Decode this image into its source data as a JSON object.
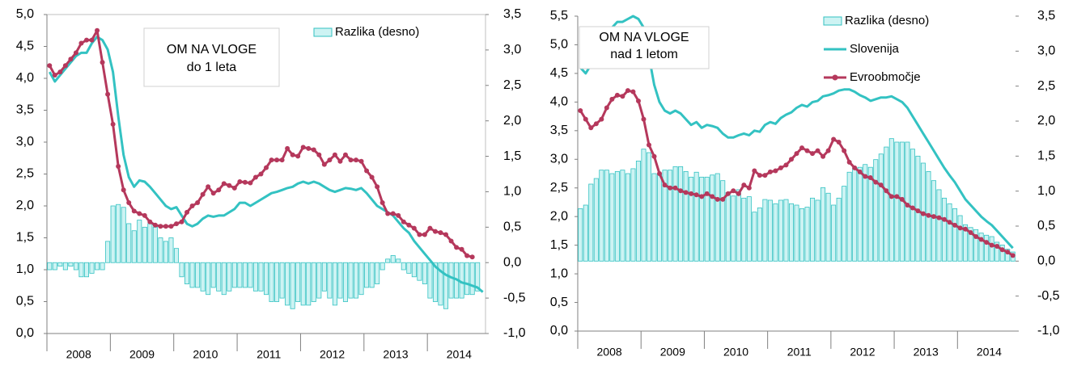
{
  "chart_data": [
    {
      "type": "combo",
      "annotation": [
        "OM NA VLOGE",
        "do 1 leta"
      ],
      "legend": "top-right",
      "frame": true,
      "categories": [
        null,
        null,
        null,
        null,
        null,
        null,
        "2008",
        null,
        null,
        null,
        null,
        null,
        null,
        null,
        null,
        null,
        null,
        null,
        "2009",
        null,
        null,
        null,
        null,
        null,
        null,
        null,
        null,
        null,
        null,
        null,
        "2010",
        null,
        null,
        null,
        null,
        null,
        null,
        null,
        null,
        null,
        null,
        null,
        "2011",
        null,
        null,
        null,
        null,
        null,
        null,
        null,
        null,
        null,
        null,
        null,
        "2012",
        null,
        null,
        null,
        null,
        null,
        null,
        null,
        null,
        null,
        null,
        null,
        "2013",
        null,
        null,
        null,
        null,
        null,
        null,
        null,
        null,
        null,
        null,
        null,
        "2014",
        null,
        null,
        null,
        null
      ],
      "ylim": [
        0,
        5
      ],
      "yticks": [
        {
          "value": 0,
          "label": "0,0"
        },
        {
          "value": 0.5,
          "label": "0,5"
        },
        {
          "value": 1,
          "label": "1,0"
        },
        {
          "value": 1.5,
          "label": "1,5"
        },
        {
          "value": 2,
          "label": "2,0"
        },
        {
          "value": 2.5,
          "label": "2,5"
        },
        {
          "value": 3,
          "label": "3,0"
        },
        {
          "value": 3.5,
          "label": "3,5"
        },
        {
          "value": 4,
          "label": "4,0"
        },
        {
          "value": 4.5,
          "label": "4,5"
        },
        {
          "value": 5,
          "label": "5,0"
        }
      ],
      "y2lim": [
        -1,
        3.5
      ],
      "y2ticks": [
        {
          "value": -1,
          "label": "-1,0"
        },
        {
          "value": -0.5,
          "label": "-0,5"
        },
        {
          "value": 0,
          "label": "0,0"
        },
        {
          "value": 0.5,
          "label": "0,5"
        },
        {
          "value": 1,
          "label": "1,0"
        },
        {
          "value": 1.5,
          "label": "1,5"
        },
        {
          "value": 2,
          "label": "2,0"
        },
        {
          "value": 2.5,
          "label": "2,5"
        },
        {
          "value": 3,
          "label": "3,0"
        },
        {
          "value": 3.5,
          "label": "3,5"
        }
      ],
      "series": [
        {
          "name": "Razlika (desno)",
          "kind": "bar",
          "axis": "y2",
          "color": "#33c2c2",
          "fill": "#cdf3f3",
          "values": [
            -0.1,
            -0.1,
            -0.05,
            -0.1,
            -0.05,
            -0.1,
            -0.2,
            -0.2,
            -0.15,
            -0.1,
            -0.1,
            0.3,
            0.8,
            0.82,
            0.78,
            0.55,
            0.45,
            0.6,
            0.5,
            0.55,
            0.5,
            0.35,
            0.3,
            0.35,
            0.2,
            -0.2,
            -0.3,
            -0.35,
            -0.35,
            -0.4,
            -0.45,
            -0.35,
            -0.4,
            -0.45,
            -0.4,
            -0.35,
            -0.35,
            -0.35,
            -0.35,
            -0.4,
            -0.4,
            -0.45,
            -0.55,
            -0.55,
            -0.5,
            -0.6,
            -0.65,
            -0.55,
            -0.6,
            -0.6,
            -0.55,
            -0.5,
            -0.4,
            -0.5,
            -0.6,
            -0.5,
            -0.55,
            -0.5,
            -0.5,
            -0.45,
            -0.35,
            -0.35,
            -0.3,
            -0.1,
            0.05,
            0.1,
            0.05,
            -0.1,
            -0.15,
            -0.2,
            -0.25,
            -0.3,
            -0.5,
            -0.55,
            -0.6,
            -0.65,
            -0.5,
            -0.5,
            -0.5,
            -0.45,
            -0.45,
            -0.4,
            null
          ]
        },
        {
          "kind": "line",
          "color": "#33c2c2",
          "values": [
            4.1,
            3.95,
            4.05,
            4.15,
            4.25,
            4.35,
            4.4,
            4.4,
            4.55,
            4.65,
            4.6,
            4.45,
            4.1,
            3.4,
            2.8,
            2.45,
            2.3,
            2.4,
            2.38,
            2.3,
            2.2,
            2.1,
            2.0,
            1.95,
            1.98,
            1.85,
            1.72,
            1.68,
            1.72,
            1.8,
            1.85,
            1.83,
            1.85,
            1.85,
            1.9,
            1.95,
            2.05,
            2.05,
            2.0,
            2.05,
            2.1,
            2.15,
            2.2,
            2.22,
            2.25,
            2.28,
            2.3,
            2.35,
            2.38,
            2.35,
            2.38,
            2.35,
            2.3,
            2.25,
            2.22,
            2.25,
            2.28,
            2.27,
            2.25,
            2.28,
            2.2,
            2.1,
            2.0,
            1.95,
            1.9,
            1.85,
            1.75,
            1.65,
            1.58,
            1.45,
            1.35,
            1.25,
            1.15,
            1.05,
            0.98,
            0.92,
            0.88,
            0.85,
            0.8,
            0.78,
            0.75,
            0.72,
            0.65
          ]
        },
        {
          "kind": "line",
          "markers": true,
          "color": "#b5385c",
          "values": [
            4.2,
            4.05,
            4.1,
            4.2,
            4.3,
            4.4,
            4.55,
            4.6,
            4.6,
            4.75,
            4.25,
            3.75,
            3.28,
            2.62,
            2.25,
            2.05,
            1.92,
            1.88,
            1.85,
            1.75,
            1.7,
            1.68,
            1.68,
            1.68,
            1.72,
            1.75,
            1.9,
            2.0,
            2.05,
            2.18,
            2.3,
            2.2,
            2.25,
            2.35,
            2.32,
            2.28,
            2.38,
            2.37,
            2.36,
            2.45,
            2.5,
            2.6,
            2.72,
            2.72,
            2.72,
            2.9,
            2.8,
            2.78,
            2.92,
            2.9,
            2.88,
            2.8,
            2.65,
            2.72,
            2.8,
            2.7,
            2.8,
            2.72,
            2.72,
            2.7,
            2.55,
            2.45,
            2.3,
            2.05,
            1.88,
            1.88,
            1.85,
            1.75,
            1.7,
            1.65,
            1.55,
            1.55,
            1.65,
            1.6,
            1.58,
            1.55,
            1.45,
            1.35,
            1.32,
            1.22,
            1.2,
            null,
            null
          ]
        }
      ]
    },
    {
      "type": "combo",
      "annotation": [
        "OM NA VLOGE",
        "nad 1 letom"
      ],
      "legend": "top-right",
      "frame": false,
      "categories": [
        null,
        null,
        null,
        null,
        null,
        null,
        "2008",
        null,
        null,
        null,
        null,
        null,
        null,
        null,
        null,
        null,
        null,
        null,
        "2009",
        null,
        null,
        null,
        null,
        null,
        null,
        null,
        null,
        null,
        null,
        null,
        "2010",
        null,
        null,
        null,
        null,
        null,
        null,
        null,
        null,
        null,
        null,
        null,
        "2011",
        null,
        null,
        null,
        null,
        null,
        null,
        null,
        null,
        null,
        null,
        null,
        "2012",
        null,
        null,
        null,
        null,
        null,
        null,
        null,
        null,
        null,
        null,
        null,
        "2013",
        null,
        null,
        null,
        null,
        null,
        null,
        null,
        null,
        null,
        null,
        null,
        "2014",
        null,
        null,
        null,
        null
      ],
      "ylim": [
        0,
        5.5
      ],
      "yticks": [
        {
          "value": 0,
          "label": "0,0"
        },
        {
          "value": 0.5,
          "label": "0,5"
        },
        {
          "value": 1,
          "label": "1,0"
        },
        {
          "value": 1.5,
          "label": "1,5"
        },
        {
          "value": 2,
          "label": "2,0"
        },
        {
          "value": 2.5,
          "label": "2,5"
        },
        {
          "value": 3,
          "label": "3,0"
        },
        {
          "value": 3.5,
          "label": "3,5"
        },
        {
          "value": 4,
          "label": "4,0"
        },
        {
          "value": 4.5,
          "label": "4,5"
        },
        {
          "value": 5,
          "label": "5,0"
        },
        {
          "value": 5.5,
          "label": "5,5"
        }
      ],
      "y2lim": [
        -1,
        3.5
      ],
      "y2ticks": [
        {
          "value": -1,
          "label": "-1,0"
        },
        {
          "value": -0.5,
          "label": "-0,5"
        },
        {
          "value": 0,
          "label": "0,0"
        },
        {
          "value": 0.5,
          "label": "0,5"
        },
        {
          "value": 1,
          "label": "1,0"
        },
        {
          "value": 1.5,
          "label": "1,5"
        },
        {
          "value": 2,
          "label": "2,0"
        },
        {
          "value": 2.5,
          "label": "2,5"
        },
        {
          "value": 3,
          "label": "3,0"
        },
        {
          "value": 3.5,
          "label": "3,5"
        }
      ],
      "series": [
        {
          "name": "Razlika (desno)",
          "kind": "bar",
          "axis": "y2",
          "color": "#33c2c2",
          "fill": "#cdf3f3",
          "values": [
            0.75,
            0.8,
            1.1,
            1.18,
            1.3,
            1.3,
            1.25,
            1.28,
            1.3,
            1.25,
            1.32,
            1.43,
            1.6,
            1.55,
            1.25,
            1.25,
            1.3,
            1.3,
            1.35,
            1.35,
            1.28,
            1.2,
            1.27,
            1.2,
            1.2,
            1.23,
            1.25,
            1.15,
            0.98,
            0.93,
            1.02,
            0.9,
            0.92,
            0.7,
            0.76,
            0.88,
            0.87,
            0.82,
            0.87,
            0.88,
            0.82,
            0.8,
            0.75,
            0.77,
            0.9,
            0.87,
            1.05,
            0.97,
            0.8,
            0.9,
            1.07,
            1.27,
            1.33,
            1.34,
            1.38,
            1.34,
            1.45,
            1.53,
            1.63,
            1.75,
            1.7,
            1.7,
            1.7,
            1.6,
            1.5,
            1.4,
            1.28,
            1.15,
            1.02,
            0.9,
            0.82,
            0.75,
            0.65,
            0.52,
            0.48,
            0.45,
            0.4,
            0.37,
            0.35,
            0.27,
            0.23,
            0.17,
            0.13
          ]
        },
        {
          "name": "Slovenija",
          "kind": "line",
          "color": "#33c2c2",
          "values": [
            4.6,
            4.5,
            4.65,
            4.8,
            5.0,
            5.2,
            5.3,
            5.4,
            5.4,
            5.45,
            5.5,
            5.45,
            5.3,
            4.8,
            4.3,
            4.0,
            3.85,
            3.8,
            3.85,
            3.8,
            3.7,
            3.6,
            3.65,
            3.55,
            3.6,
            3.58,
            3.55,
            3.45,
            3.38,
            3.38,
            3.42,
            3.45,
            3.42,
            3.5,
            3.48,
            3.6,
            3.65,
            3.62,
            3.72,
            3.78,
            3.82,
            3.9,
            3.95,
            3.92,
            4.0,
            4.02,
            4.1,
            4.12,
            4.15,
            4.2,
            4.22,
            4.22,
            4.18,
            4.12,
            4.08,
            4.02,
            4.05,
            4.08,
            4.08,
            4.1,
            4.05,
            4.0,
            3.9,
            3.75,
            3.6,
            3.45,
            3.3,
            3.15,
            3.0,
            2.85,
            2.72,
            2.6,
            2.45,
            2.3,
            2.2,
            2.1,
            2.0,
            1.92,
            1.85,
            1.75,
            1.65,
            1.55,
            1.45
          ]
        },
        {
          "name": "Evroobmočje",
          "kind": "line",
          "markers": true,
          "color": "#b5385c",
          "values": [
            3.85,
            3.7,
            3.55,
            3.62,
            3.7,
            3.9,
            4.05,
            4.12,
            4.1,
            4.2,
            4.18,
            4.02,
            3.7,
            3.25,
            3.05,
            2.75,
            2.55,
            2.5,
            2.5,
            2.45,
            2.42,
            2.4,
            2.38,
            2.35,
            2.4,
            2.35,
            2.3,
            2.3,
            2.4,
            2.45,
            2.4,
            2.55,
            2.5,
            2.8,
            2.72,
            2.72,
            2.78,
            2.8,
            2.85,
            2.9,
            3.0,
            3.1,
            3.2,
            3.15,
            3.1,
            3.15,
            3.05,
            3.15,
            3.35,
            3.3,
            3.15,
            2.95,
            2.85,
            2.78,
            2.7,
            2.68,
            2.6,
            2.55,
            2.45,
            2.35,
            2.35,
            2.3,
            2.2,
            2.15,
            2.1,
            2.05,
            2.02,
            2.0,
            1.98,
            1.95,
            1.9,
            1.85,
            1.8,
            1.78,
            1.72,
            1.65,
            1.6,
            1.55,
            1.5,
            1.48,
            1.42,
            1.38,
            1.32
          ]
        }
      ]
    }
  ]
}
